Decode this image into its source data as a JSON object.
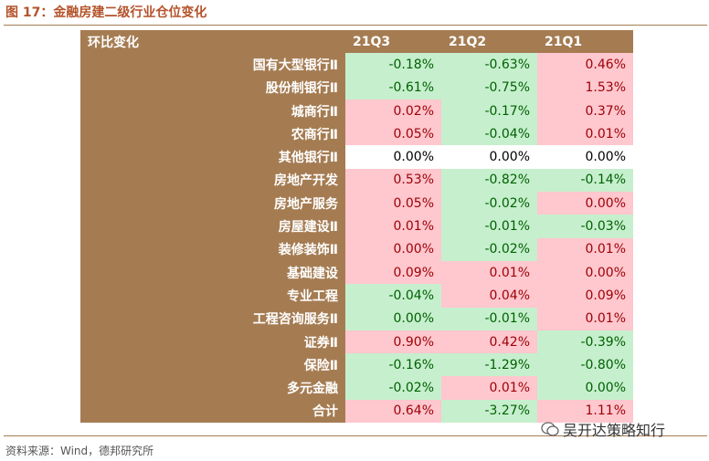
{
  "title": "图 17：金融房建二级行业仓位变化",
  "table": {
    "header": [
      "环比变化",
      "21Q3",
      "21Q2",
      "21Q1"
    ],
    "rows": [
      {
        "label": "国有大型银行Ⅱ",
        "cells": [
          {
            "text": "-0.18%",
            "color": "green"
          },
          {
            "text": "-0.63%",
            "color": "green"
          },
          {
            "text": "0.46%",
            "color": "pink"
          }
        ]
      },
      {
        "label": "股份制银行Ⅱ",
        "cells": [
          {
            "text": "-0.61%",
            "color": "green"
          },
          {
            "text": "-0.75%",
            "color": "green"
          },
          {
            "text": "1.53%",
            "color": "pink"
          }
        ]
      },
      {
        "label": "城商行Ⅱ",
        "cells": [
          {
            "text": "0.02%",
            "color": "pink"
          },
          {
            "text": "-0.17%",
            "color": "green"
          },
          {
            "text": "0.37%",
            "color": "pink"
          }
        ]
      },
      {
        "label": "农商行Ⅱ",
        "cells": [
          {
            "text": "0.05%",
            "color": "pink"
          },
          {
            "text": "-0.04%",
            "color": "green"
          },
          {
            "text": "0.01%",
            "color": "pink"
          }
        ]
      },
      {
        "label": "其他银行Ⅱ",
        "cells": [
          {
            "text": "0.00%",
            "color": "white"
          },
          {
            "text": "0.00%",
            "color": "white"
          },
          {
            "text": "0.00%",
            "color": "white"
          }
        ]
      },
      {
        "label": "房地产开发",
        "cells": [
          {
            "text": "0.53%",
            "color": "pink"
          },
          {
            "text": "-0.82%",
            "color": "green"
          },
          {
            "text": "-0.14%",
            "color": "green"
          }
        ]
      },
      {
        "label": "房地产服务",
        "cells": [
          {
            "text": "0.05%",
            "color": "pink"
          },
          {
            "text": "-0.02%",
            "color": "green"
          },
          {
            "text": "0.00%",
            "color": "pink"
          }
        ]
      },
      {
        "label": "房屋建设Ⅱ",
        "cells": [
          {
            "text": "0.01%",
            "color": "pink"
          },
          {
            "text": "-0.01%",
            "color": "green"
          },
          {
            "text": "-0.03%",
            "color": "green"
          }
        ]
      },
      {
        "label": "装修装饰Ⅱ",
        "cells": [
          {
            "text": "0.00%",
            "color": "pink"
          },
          {
            "text": "-0.02%",
            "color": "green"
          },
          {
            "text": "0.01%",
            "color": "pink"
          }
        ]
      },
      {
        "label": "基础建设",
        "cells": [
          {
            "text": "0.09%",
            "color": "pink"
          },
          {
            "text": "0.01%",
            "color": "pink"
          },
          {
            "text": "0.00%",
            "color": "pink"
          }
        ]
      },
      {
        "label": "专业工程",
        "cells": [
          {
            "text": "-0.04%",
            "color": "green"
          },
          {
            "text": "0.04%",
            "color": "pink"
          },
          {
            "text": "0.09%",
            "color": "pink"
          }
        ]
      },
      {
        "label": "工程咨询服务Ⅱ",
        "cells": [
          {
            "text": "0.00%",
            "color": "green"
          },
          {
            "text": "-0.01%",
            "color": "green"
          },
          {
            "text": "0.01%",
            "color": "pink"
          }
        ]
      },
      {
        "label": "证券Ⅱ",
        "cells": [
          {
            "text": "0.90%",
            "color": "pink"
          },
          {
            "text": "0.42%",
            "color": "pink"
          },
          {
            "text": "-0.39%",
            "color": "green"
          }
        ]
      },
      {
        "label": "保险Ⅱ",
        "cells": [
          {
            "text": "-0.16%",
            "color": "green"
          },
          {
            "text": "-1.29%",
            "color": "green"
          },
          {
            "text": "-0.80%",
            "color": "green"
          }
        ]
      },
      {
        "label": "多元金融",
        "cells": [
          {
            "text": "-0.02%",
            "color": "green"
          },
          {
            "text": "0.01%",
            "color": "pink"
          },
          {
            "text": "0.00%",
            "color": "green"
          }
        ]
      },
      {
        "label": "合计",
        "cells": [
          {
            "text": "0.64%",
            "color": "pink"
          },
          {
            "text": "-3.27%",
            "color": "green"
          },
          {
            "text": "1.11%",
            "color": "pink"
          }
        ]
      }
    ]
  },
  "footer": "资料来源：Wind，德邦研究所",
  "watermark": "吴开达策略知行"
}
